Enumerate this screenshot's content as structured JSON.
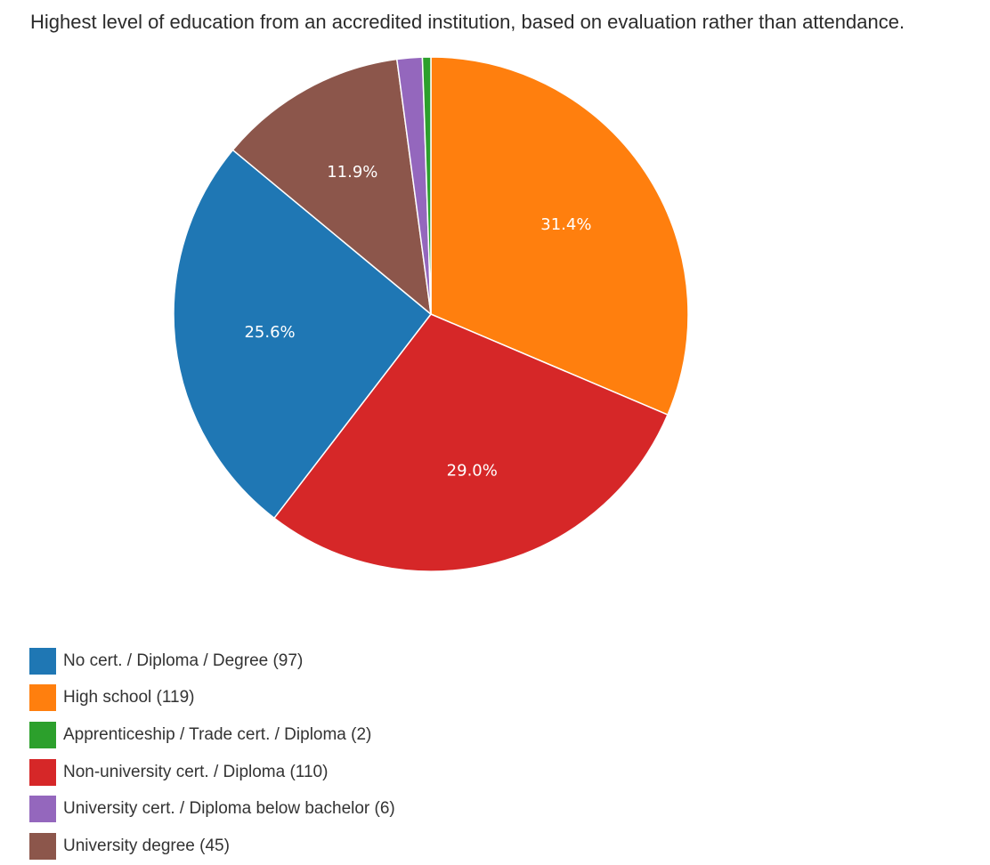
{
  "chart_data": {
    "type": "pie",
    "title": "Highest level of education from an accredited institution, based on evaluation rather than attendance.",
    "slices": [
      {
        "name": "No cert. / Diploma / Degree (97)",
        "value": 97,
        "color": "#1f77b4",
        "label": "25.6%"
      },
      {
        "name": "High school (119)",
        "value": 119,
        "color": "#ff7f0e",
        "label": "31.4%"
      },
      {
        "name": "Apprenticeship / Trade cert. / Diploma (2)",
        "value": 2,
        "color": "#2ca02c",
        "label": ""
      },
      {
        "name": "Non-university cert. / Diploma (110)",
        "value": 110,
        "color": "#d62728",
        "label": "29.0%"
      },
      {
        "name": "University cert. / Diploma below bachelor (6)",
        "value": 6,
        "color": "#9467bd",
        "label": ""
      },
      {
        "name": "University degree (45)",
        "value": 45,
        "color": "#8c564b",
        "label": "11.9%"
      }
    ],
    "draw_order": [
      1,
      3,
      0,
      5,
      4,
      2
    ],
    "legend_position": "bottom-left"
  }
}
